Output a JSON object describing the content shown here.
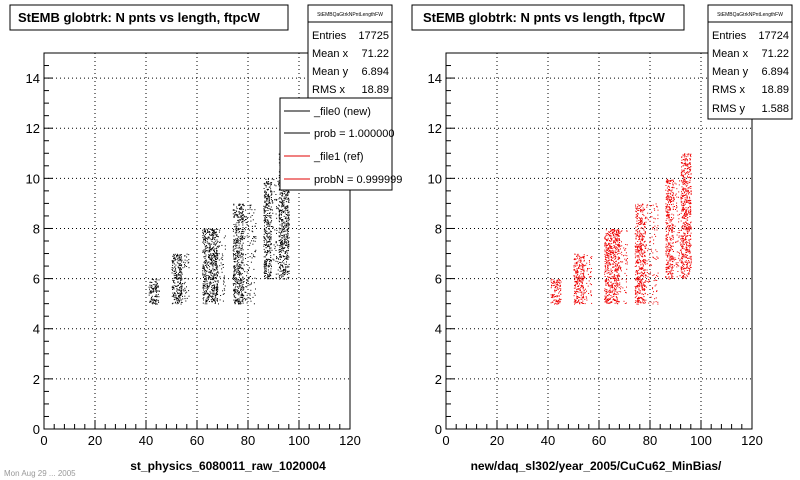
{
  "chart_data": [
    {
      "type": "scatter",
      "title": "StEMB globtrk: N pnts vs length, ftpcW",
      "xlabel": "st_physics_6080011_raw_1020004",
      "ylabel": "",
      "xlim": [
        0,
        120
      ],
      "ylim": [
        0,
        15
      ],
      "x_ticks": [
        "0",
        "20",
        "40",
        "60",
        "80",
        "100",
        "120"
      ],
      "y_ticks": [
        "0",
        "2",
        "4",
        "6",
        "8",
        "10",
        "12",
        "14"
      ],
      "grid": true,
      "color": "#000000",
      "clusters": [
        {
          "x": [
            41,
            45
          ],
          "y": [
            5,
            6
          ],
          "density": 1.0
        },
        {
          "x": [
            50,
            54
          ],
          "y": [
            5,
            7
          ],
          "density": 1.0
        },
        {
          "x": [
            53,
            57
          ],
          "y": [
            5,
            7
          ],
          "density": 0.25
        },
        {
          "x": [
            62,
            68
          ],
          "y": [
            5,
            8
          ],
          "density": 1.0
        },
        {
          "x": [
            66,
            71
          ],
          "y": [
            5,
            8
          ],
          "density": 0.2
        },
        {
          "x": [
            74,
            78
          ],
          "y": [
            5,
            9
          ],
          "density": 1.0
        },
        {
          "x": [
            78,
            83
          ],
          "y": [
            5,
            9
          ],
          "density": 0.2
        },
        {
          "x": [
            86,
            89
          ],
          "y": [
            6,
            10
          ],
          "density": 1.0
        },
        {
          "x": [
            89,
            92
          ],
          "y": [
            6,
            10
          ],
          "density": 0.2
        },
        {
          "x": [
            92,
            96
          ],
          "y": [
            6,
            11
          ],
          "density": 1.0
        }
      ],
      "stats": {
        "header": "StEMBQaGtrkNPntLengthFW",
        "rows": [
          {
            "label": "Entries",
            "value": "17725"
          },
          {
            "label": "Mean x",
            "value": "71.22"
          },
          {
            "label": "Mean y",
            "value": "6.894"
          },
          {
            "label": "RMS x",
            "value": "18.89"
          }
        ]
      },
      "legend": {
        "position": "top-right",
        "entries": [
          {
            "label": "_file0 (new)",
            "color": "#000000"
          },
          {
            "label": "prob = 1.000000",
            "color": "#000000"
          },
          {
            "label": "_file1 (ref)",
            "color": "#e00000"
          },
          {
            "label": "probN = 0.999999",
            "color": "#e00000"
          }
        ]
      }
    },
    {
      "type": "scatter",
      "title": "StEMB globtrk: N pnts vs length, ftpcW",
      "xlabel": "new/daq_sl302/year_2005/CuCu62_MinBias/",
      "ylabel": "",
      "xlim": [
        0,
        120
      ],
      "ylim": [
        0,
        15
      ],
      "x_ticks": [
        "0",
        "20",
        "40",
        "60",
        "80",
        "100",
        "120"
      ],
      "y_ticks": [
        "0",
        "2",
        "4",
        "6",
        "8",
        "10",
        "12",
        "14"
      ],
      "grid": true,
      "color": "#ee0000",
      "clusters": [
        {
          "x": [
            41,
            45
          ],
          "y": [
            5,
            6
          ],
          "density": 1.0
        },
        {
          "x": [
            50,
            54
          ],
          "y": [
            5,
            7
          ],
          "density": 1.0
        },
        {
          "x": [
            53,
            57
          ],
          "y": [
            5,
            7
          ],
          "density": 0.25
        },
        {
          "x": [
            62,
            68
          ],
          "y": [
            5,
            8
          ],
          "density": 1.0
        },
        {
          "x": [
            66,
            71
          ],
          "y": [
            5,
            8
          ],
          "density": 0.2
        },
        {
          "x": [
            74,
            78
          ],
          "y": [
            5,
            9
          ],
          "density": 1.0
        },
        {
          "x": [
            78,
            83
          ],
          "y": [
            5,
            9
          ],
          "density": 0.2
        },
        {
          "x": [
            86,
            89
          ],
          "y": [
            6,
            10
          ],
          "density": 1.0
        },
        {
          "x": [
            89,
            92
          ],
          "y": [
            6,
            10
          ],
          "density": 0.2
        },
        {
          "x": [
            92,
            96
          ],
          "y": [
            6,
            11
          ],
          "density": 1.0
        }
      ],
      "stats": {
        "header": "StEMBQaGtrkNPntLengthFW",
        "rows": [
          {
            "label": "Entries",
            "value": "17724"
          },
          {
            "label": "Mean x",
            "value": "71.22"
          },
          {
            "label": "Mean y",
            "value": "6.894"
          },
          {
            "label": "RMS x",
            "value": "18.89"
          },
          {
            "label": "RMS y",
            "value": "1.588"
          }
        ]
      }
    }
  ],
  "footer": "Mon Aug 29 ... 2005"
}
